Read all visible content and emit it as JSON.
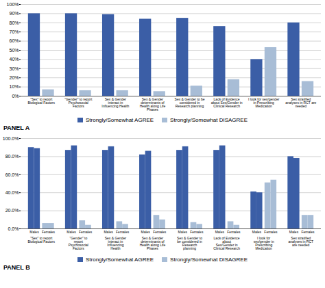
{
  "chart_data": [
    {
      "type": "bar",
      "title": "PANEL A",
      "categories": [
        "\"Sex\" to report\nBiological Factors",
        "\"Gender\" to report\nPsychosocial\nFactors",
        "Sex & Gender\ninteract in\nInfluencing Health",
        "Sex & Gender\ndeterminants of\nHealth along Life\nPhases",
        "Sex & Gender to be\nconsidered in\nResearch planning",
        "Lack of Evidence\nabout Sex/Gender in\nClinical Research",
        "I look for sex/gender\nin Prescribing\nMedication",
        "Sex stratified\nanalyses in RCT are\nneeded"
      ],
      "series": [
        {
          "name": "Strongly/Somewhat AGREE",
          "color": "#3B5EA6",
          "values": [
            90,
            90,
            89,
            84,
            85,
            76,
            40,
            80
          ]
        },
        {
          "name": "Strongly/Somewhat DISAGREE",
          "color": "#A8BDD6",
          "values": [
            7,
            6,
            6,
            5,
            11,
            18,
            53,
            16
          ]
        }
      ],
      "ylim": [
        0,
        100
      ],
      "yticks": [
        {
          "value": 0,
          "label": "0%"
        },
        {
          "value": 10,
          "label": "10%"
        },
        {
          "value": 20,
          "label": "20%"
        },
        {
          "value": 30,
          "label": "30%"
        },
        {
          "value": 40,
          "label": "40%"
        },
        {
          "value": 50,
          "label": "50%"
        },
        {
          "value": 60,
          "label": "60%"
        },
        {
          "value": 70,
          "label": "70%"
        },
        {
          "value": 80,
          "label": "80%"
        },
        {
          "value": 90,
          "label": "90%"
        },
        {
          "value": 100,
          "label": "100%"
        }
      ],
      "grid": true,
      "legend": "bottom"
    },
    {
      "type": "bar",
      "title": "PANEL B",
      "categories": [
        "\"Sex\" to report\nBiological Factors",
        "\"Gender\" to\nreport\nPsychosocial\nFactors",
        "Sex & Gender\ninteract in\nInfluencing\nHealth",
        "Sex & Gender\ndeterminants of\nHealth along Life\nPhases",
        "Sex & Gender to\nbe considered in\nResearch\nplanning",
        "Lack of Evidence\nabout\nSex/Gender in\nClinical Research",
        "I look for\nsex/gender in\nPrescribing\nMedication",
        "Sex stratified\nanalyses in RCT\nare needed"
      ],
      "series": [
        {
          "name": "Strongly/Somewhat AGREE",
          "color": "#3B5EA6",
          "values": [
            90,
            87,
            87,
            82,
            87,
            87,
            41,
            80
          ]
        },
        {
          "name": "Strongly/Somewhat AGREE",
          "color": "#3B5EA6",
          "values": [
            89,
            92,
            91,
            86,
            91,
            92,
            40,
            78
          ]
        },
        {
          "name": "Strongly/Somewhat DISAGREE",
          "color": "#A8BDD6",
          "values": [
            6,
            9,
            8,
            15,
            7,
            8,
            51,
            15
          ]
        },
        {
          "name": "Strongly/Somewhat DISAGREE",
          "color": "#A8BDD6",
          "values": [
            6,
            4,
            5,
            10,
            5,
            4,
            54,
            15
          ]
        }
      ],
      "annotations": [
        "Males",
        "Females"
      ],
      "ylim": [
        0,
        100
      ],
      "yticks": [
        {
          "value": 0,
          "label": "0.0%"
        },
        {
          "value": 20,
          "label": "20.0%"
        },
        {
          "value": 40,
          "label": "40.0%"
        },
        {
          "value": 60,
          "label": "60.0%"
        },
        {
          "value": 80,
          "label": "80.0%"
        },
        {
          "value": 100,
          "label": "100.0%"
        }
      ],
      "grid": true,
      "legend": "bottom"
    }
  ]
}
